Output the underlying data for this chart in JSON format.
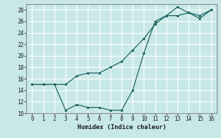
{
  "xlabel": "Humidex (Indice chaleur)",
  "background_color": "#c8e8e8",
  "grid_color": "#b0d0d0",
  "line_color": "#1a6060",
  "marker_color": "#1a6060",
  "xlim": [
    -0.5,
    16.5
  ],
  "ylim": [
    10,
    29
  ],
  "yticks": [
    10,
    12,
    14,
    16,
    18,
    20,
    22,
    24,
    26,
    28
  ],
  "xticks": [
    0,
    1,
    2,
    3,
    4,
    5,
    6,
    7,
    8,
    9,
    10,
    11,
    12,
    13,
    14,
    15,
    16
  ],
  "series1_x": [
    0,
    1,
    2,
    3,
    4,
    5,
    6,
    7,
    8,
    9,
    10,
    11,
    12,
    13,
    14,
    15,
    16
  ],
  "series1_y": [
    15,
    15,
    15,
    10.5,
    11.5,
    11,
    11,
    10.5,
    10.5,
    14,
    20.5,
    26,
    27,
    28.5,
    27.5,
    26.5,
    28
  ],
  "series2_x": [
    0,
    1,
    2,
    3,
    4,
    5,
    6,
    7,
    8,
    9,
    10,
    11,
    12,
    13,
    14,
    15,
    16
  ],
  "series2_y": [
    15,
    15,
    15,
    15,
    16.5,
    17,
    17,
    18,
    19,
    21,
    23,
    25.5,
    27,
    27,
    27.5,
    27,
    28
  ]
}
